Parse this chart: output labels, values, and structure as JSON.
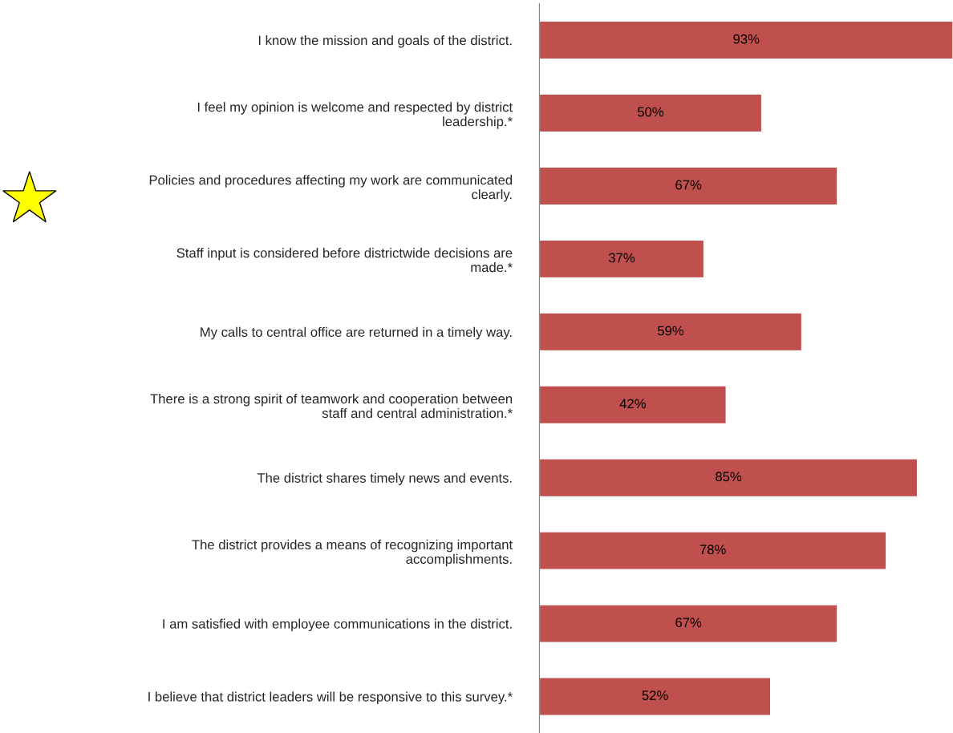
{
  "chart_data": {
    "type": "bar",
    "orientation": "horizontal",
    "data_labels": true,
    "categories": [
      "I know the mission and goals of the district.",
      "I feel my opinion is welcome and respected by district\nleadership.*",
      "Policies and procedures affecting my work are communicated\nclearly.",
      "Staff input is considered before districtwide decisions are\nmade.*",
      "My calls to central office are returned in a timely way.",
      "There is a strong spirit of teamwork and cooperation between\nstaff and central administration.*",
      "The district shares timely news and events.",
      "The district provides a means of recognizing important\naccomplishments.",
      "I am satisfied with employee communications in the district.",
      "I believe that district leaders will be responsive to this survey.*"
    ],
    "values": [
      93,
      50,
      67,
      37,
      59,
      42,
      85,
      78,
      67,
      52
    ],
    "value_labels": [
      "93%",
      "50%",
      "67%",
      "37%",
      "59%",
      "42%",
      "85%",
      "78%",
      "67%",
      "52%"
    ],
    "color": "#c0504d",
    "grid": false,
    "legend": false
  }
}
